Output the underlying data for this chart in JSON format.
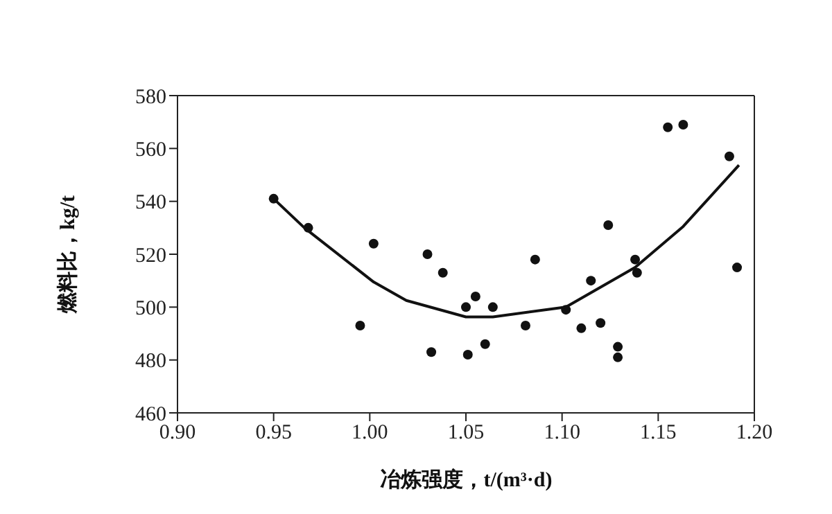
{
  "chart_data": {
    "type": "scatter",
    "xlabel": "冶炼强度，t/(m³·d)",
    "ylabel": "燃料比，kg/t",
    "xlim": [
      0.9,
      1.2
    ],
    "xticks": [
      {
        "value": 0.9,
        "label": "0.90"
      },
      {
        "value": 0.95,
        "label": "0.95"
      },
      {
        "value": 1.0,
        "label": "1.00"
      },
      {
        "value": 1.05,
        "label": "1.05"
      },
      {
        "value": 1.1,
        "label": "1.10"
      },
      {
        "value": 1.15,
        "label": "1.15"
      },
      {
        "value": 1.2,
        "label": "1.20"
      }
    ],
    "ylim": [
      460,
      580
    ],
    "yticks": [
      460,
      480,
      500,
      520,
      540,
      560,
      580
    ],
    "legend": false,
    "series": [
      {
        "color": "#111111",
        "marker": "circle",
        "x": [
          0.95,
          0.968,
          1.002,
          0.995,
          1.03,
          1.038,
          1.032,
          1.051,
          1.05,
          1.055,
          1.06,
          1.064,
          1.086,
          1.081,
          1.102,
          1.115,
          1.11,
          1.12,
          1.124,
          1.129,
          1.129,
          1.138,
          1.139,
          1.155,
          1.163,
          1.187,
          1.191
        ],
        "values": [
          541,
          530,
          524,
          493,
          520,
          513,
          483,
          482,
          500,
          504,
          486,
          500,
          518,
          493,
          499,
          510,
          492,
          494,
          531,
          485,
          481,
          518,
          513,
          568,
          569,
          557,
          515
        ]
      },
      {
        "type": "line",
        "color": "#111111",
        "marker": "none",
        "line_style": "solid",
        "x": [
          0.95,
          0.966,
          1.002,
          1.019,
          1.05,
          1.064,
          1.102,
          1.138,
          1.163,
          1.192
        ],
        "values": [
          541,
          530,
          509.5,
          502.5,
          496.3,
          496.3,
          500,
          515,
          530.5,
          553.7
        ]
      }
    ]
  }
}
